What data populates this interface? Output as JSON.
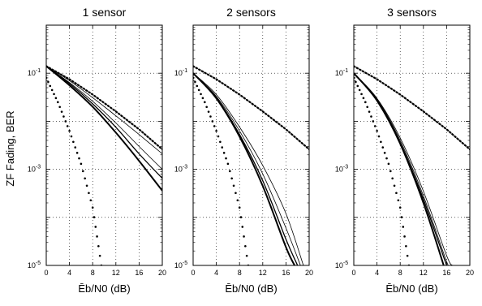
{
  "figure": {
    "ylabel": "ZF Fading, BER"
  },
  "chart_data": [
    {
      "type": "line",
      "title": "1 sensor",
      "xlabel": "Ēb/N0  (dB)",
      "ylabel": "ZF Fading, BER",
      "xlim": [
        0,
        20
      ],
      "ylim": [
        1e-05,
        1
      ],
      "yscale": "log",
      "grid": true,
      "xticks": [
        0,
        4,
        8,
        12,
        16,
        20
      ],
      "yticks": [
        {
          "base": "10",
          "exp": "-5",
          "value": 1e-05
        },
        {
          "base": "10",
          "exp": "-3",
          "value": 0.001
        },
        {
          "base": "10",
          "exp": "-1",
          "value": 0.1
        }
      ],
      "series": [
        {
          "style": "dotted-steep",
          "x": [
            0,
            2,
            4,
            6,
            8,
            9.5
          ],
          "y": [
            0.08,
            0.025,
            0.0063,
            0.0013,
            0.00016,
            1e-05
          ]
        },
        {
          "style": "dotted-ref",
          "x": [
            0,
            4,
            8,
            12,
            16,
            20
          ],
          "y": [
            0.14,
            0.075,
            0.036,
            0.016,
            0.0068,
            0.0026
          ]
        },
        {
          "style": "thin",
          "x": [
            0,
            4,
            8,
            12,
            16,
            20
          ],
          "y": [
            0.14,
            0.07,
            0.031,
            0.013,
            0.0053,
            0.0021
          ]
        },
        {
          "style": "thin",
          "x": [
            0,
            4,
            8,
            12,
            16,
            20
          ],
          "y": [
            0.14,
            0.064,
            0.026,
            0.0092,
            0.003,
            0.001
          ]
        },
        {
          "style": "medium",
          "x": [
            0,
            4,
            8,
            12,
            16,
            20
          ],
          "y": [
            0.14,
            0.061,
            0.023,
            0.0075,
            0.0021,
            0.00065
          ]
        },
        {
          "style": "thick",
          "x": [
            0,
            4,
            8,
            12,
            16,
            20
          ],
          "y": [
            0.14,
            0.056,
            0.02,
            0.0058,
            0.0015,
            0.00036
          ]
        }
      ]
    },
    {
      "type": "line",
      "title": "2 sensors",
      "xlabel": "Ēb/N0  (dB)",
      "xlim": [
        0,
        20
      ],
      "ylim": [
        1e-05,
        1
      ],
      "yscale": "log",
      "grid": true,
      "xticks": [
        0,
        4,
        8,
        12,
        16,
        20
      ],
      "yticks": [
        {
          "base": "10",
          "exp": "-5",
          "value": 1e-05
        },
        {
          "base": "10",
          "exp": "-3",
          "value": 0.001
        },
        {
          "base": "10",
          "exp": "-1",
          "value": 0.1
        }
      ],
      "series": [
        {
          "style": "dotted-steep",
          "x": [
            0,
            2,
            4,
            6,
            8,
            9.5
          ],
          "y": [
            0.08,
            0.025,
            0.0063,
            0.0013,
            0.00016,
            1e-05
          ]
        },
        {
          "style": "dotted-ref",
          "x": [
            0,
            4,
            8,
            12,
            16,
            20
          ],
          "y": [
            0.14,
            0.075,
            0.036,
            0.016,
            0.0068,
            0.0026
          ]
        },
        {
          "style": "thin",
          "x": [
            0,
            4,
            8,
            12,
            16,
            19
          ],
          "y": [
            0.1,
            0.036,
            0.0076,
            0.0012,
            0.00012,
            1e-05
          ]
        },
        {
          "style": "thin",
          "x": [
            0,
            4,
            8,
            12,
            16,
            18.5
          ],
          "y": [
            0.1,
            0.033,
            0.0063,
            0.0008,
            6e-05,
            1e-05
          ]
        },
        {
          "style": "medium",
          "x": [
            0,
            4,
            8,
            12,
            16,
            18
          ],
          "y": [
            0.1,
            0.031,
            0.0053,
            0.00058,
            3.5e-05,
            1e-05
          ]
        },
        {
          "style": "thick",
          "x": [
            0,
            4,
            8,
            12,
            16,
            17.5
          ],
          "y": [
            0.1,
            0.03,
            0.0048,
            0.00045,
            2.4e-05,
            1e-05
          ]
        }
      ]
    },
    {
      "type": "line",
      "title": "3 sensors",
      "xlabel": "Ēb/N0  (dB)",
      "xlim": [
        0,
        20
      ],
      "ylim": [
        1e-05,
        1
      ],
      "yscale": "log",
      "grid": true,
      "xticks": [
        0,
        4,
        8,
        12,
        16,
        20
      ],
      "yticks": [
        {
          "base": "10",
          "exp": "-5",
          "value": 1e-05
        },
        {
          "base": "10",
          "exp": "-3",
          "value": 0.001
        },
        {
          "base": "10",
          "exp": "-1",
          "value": 0.1
        }
      ],
      "series": [
        {
          "style": "dotted-steep",
          "x": [
            0,
            2,
            4,
            6,
            8,
            9.5
          ],
          "y": [
            0.08,
            0.025,
            0.0063,
            0.0013,
            0.00016,
            1e-05
          ]
        },
        {
          "style": "dotted-ref",
          "x": [
            0,
            4,
            8,
            12,
            16,
            20
          ],
          "y": [
            0.14,
            0.075,
            0.036,
            0.016,
            0.0068,
            0.0026
          ]
        },
        {
          "style": "thin",
          "x": [
            0,
            4,
            8,
            12,
            16,
            17
          ],
          "y": [
            0.1,
            0.03,
            0.0045,
            0.00035,
            1.6e-05,
            1e-05
          ]
        },
        {
          "style": "thin",
          "x": [
            0,
            4,
            8,
            12,
            16,
            16.6
          ],
          "y": [
            0.1,
            0.029,
            0.004,
            0.00028,
            1.2e-05,
            1e-05
          ]
        },
        {
          "style": "medium",
          "x": [
            0,
            4,
            8,
            12,
            16,
            16.2
          ],
          "y": [
            0.1,
            0.028,
            0.0036,
            0.00024,
            1e-05,
            1e-05
          ]
        },
        {
          "style": "thick",
          "x": [
            0,
            4,
            8,
            12,
            15.5
          ],
          "y": [
            0.1,
            0.027,
            0.0034,
            0.0002,
            1e-05
          ]
        }
      ]
    }
  ]
}
